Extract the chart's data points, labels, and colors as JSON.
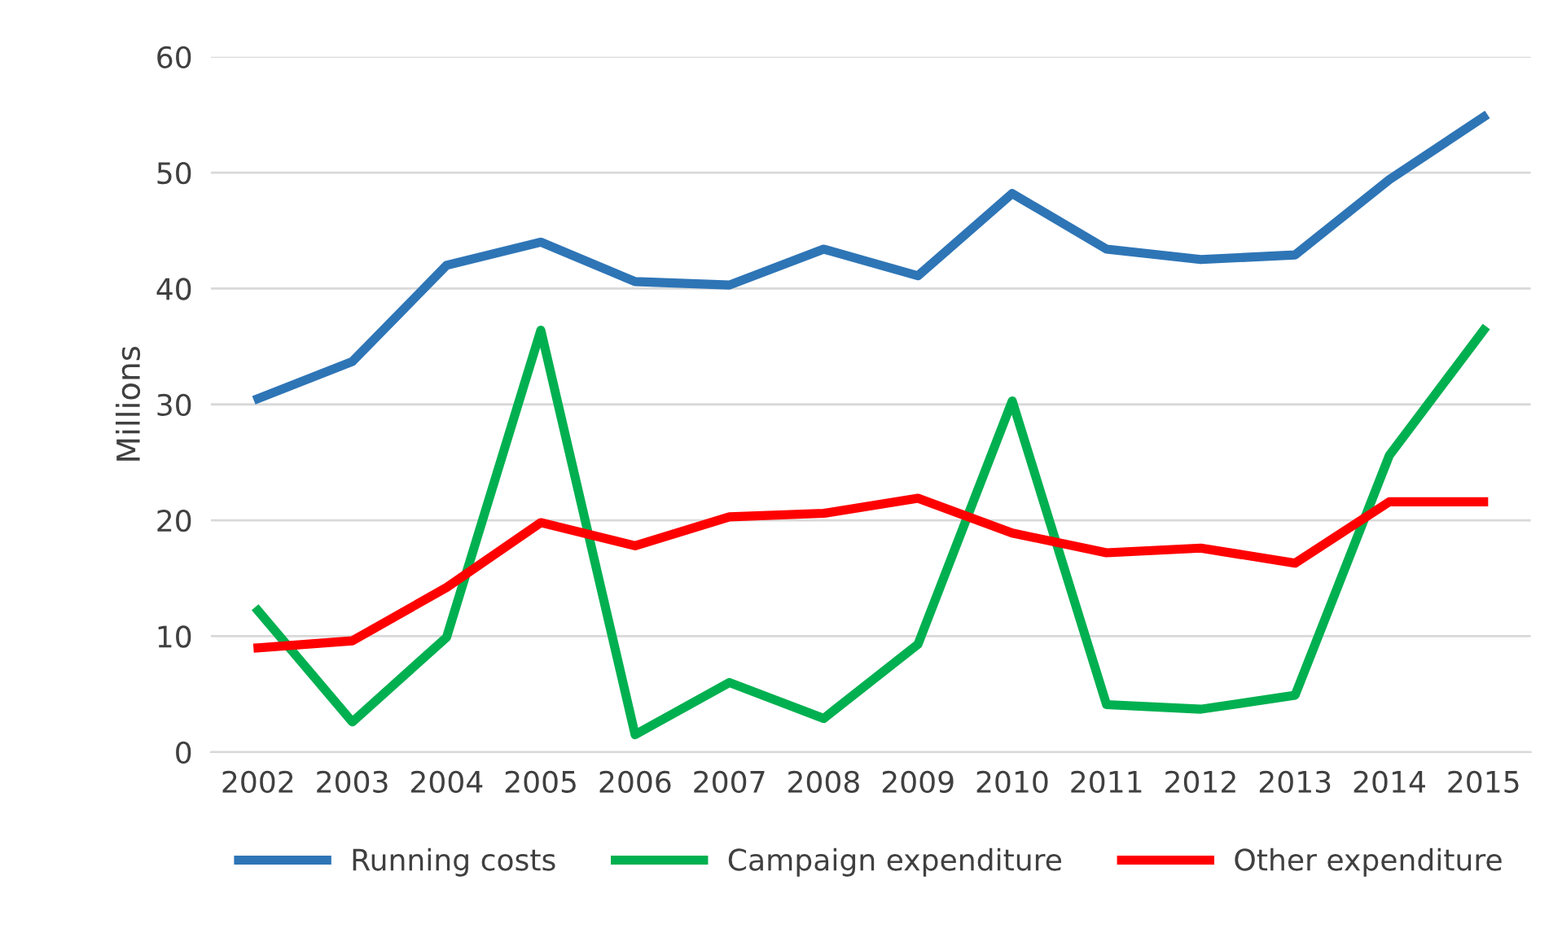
{
  "chart_data": {
    "type": "line",
    "ylabel": "Millions",
    "categories": [
      "2002",
      "2003",
      "2004",
      "2005",
      "2006",
      "2007",
      "2008",
      "2009",
      "2010",
      "2011",
      "2012",
      "2013",
      "2014",
      "2015"
    ],
    "series": [
      {
        "name": "Running costs",
        "color": "#2e75b6",
        "values": [
          30.5,
          33.7,
          42.0,
          44.0,
          40.6,
          40.3,
          43.4,
          41.1,
          48.2,
          43.4,
          42.5,
          42.9,
          49.4,
          54.8
        ]
      },
      {
        "name": "Campaign expenditure",
        "color": "#00b050",
        "values": [
          12.2,
          2.6,
          9.9,
          36.4,
          1.5,
          6.0,
          2.9,
          9.3,
          30.3,
          4.1,
          3.7,
          4.9,
          25.6,
          36.4
        ]
      },
      {
        "name": "Other expenditure",
        "color": "#ff0000",
        "values": [
          9.0,
          9.6,
          14.2,
          19.8,
          17.8,
          20.3,
          20.6,
          21.9,
          18.9,
          17.2,
          17.6,
          16.3,
          21.6,
          21.6
        ]
      }
    ],
    "ylim": [
      0,
      60
    ],
    "yticks": [
      0,
      10,
      20,
      30,
      40,
      50,
      60
    ],
    "grid": "y",
    "legend": "bottom",
    "marker": "none",
    "line_style": "solid"
  }
}
